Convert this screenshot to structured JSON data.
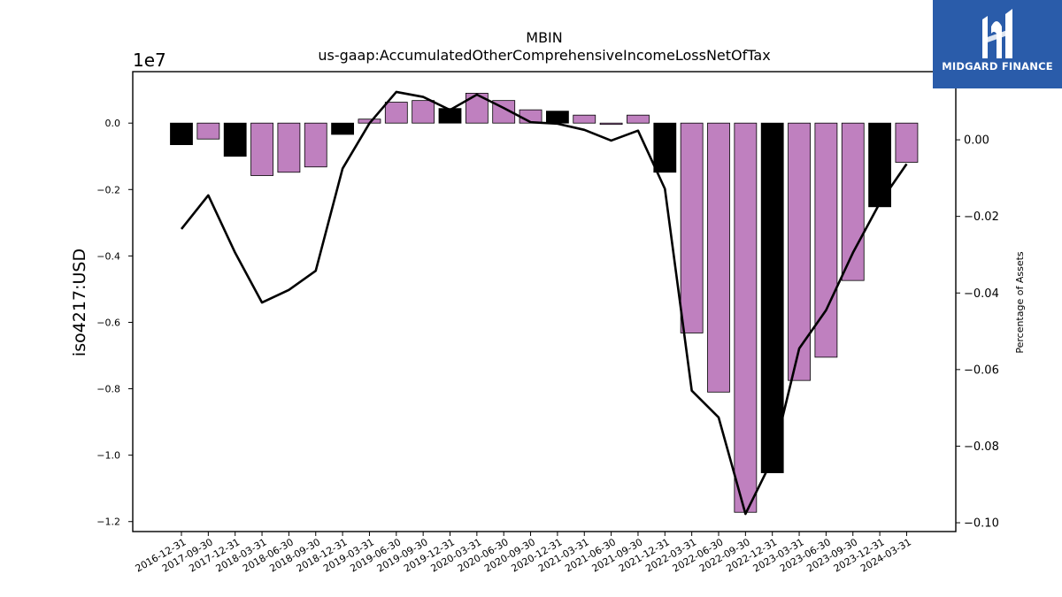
{
  "chart_data": {
    "type": "bar+line",
    "title": "MBIN",
    "subtitle": "us-gaap:AccumulatedOtherComprehensiveIncomeLossNetOfTax",
    "ylabel": "iso4217:USD",
    "y2label": "Percentage of Assets",
    "y_offset_label": "1e7",
    "ylim": [
      -1.23,
      0.155
    ],
    "y2lim": [
      -0.1023,
      0.0178
    ],
    "yticks": [
      "0.0",
      "−0.2",
      "−0.4",
      "−0.6",
      "−0.8",
      "−1.0",
      "−1.2"
    ],
    "y2ticks": [
      "0.00",
      "−0.02",
      "−0.04",
      "−0.06",
      "−0.08",
      "−0.10"
    ],
    "categories": [
      "2016-12-31",
      "2017-09-30",
      "2017-12-31",
      "2018-03-31",
      "2018-06-30",
      "2018-09-30",
      "2018-12-31",
      "2019-03-31",
      "2019-06-30",
      "2019-09-30",
      "2019-12-31",
      "2020-03-31",
      "2020-06-30",
      "2020-09-30",
      "2020-12-31",
      "2021-03-31",
      "2021-06-30",
      "2021-09-30",
      "2021-12-31",
      "2022-03-31",
      "2022-06-30",
      "2022-09-30",
      "2022-12-31",
      "2023-03-31",
      "2023-06-30",
      "2023-09-30",
      "2023-12-31",
      "2024-03-31"
    ],
    "series": [
      {
        "type": "bar",
        "values": [
          -0.065,
          -0.048,
          -0.1,
          -0.158,
          -0.148,
          -0.132,
          -0.034,
          0.012,
          0.063,
          0.068,
          0.044,
          0.09,
          0.068,
          0.04,
          0.036,
          0.024,
          -0.004,
          0.024,
          -0.148,
          -0.632,
          -0.81,
          -1.172,
          -1.053,
          -0.775,
          -0.705,
          -0.474,
          -0.252,
          -0.118
        ],
        "colors": [
          "#000000",
          "#bf80bf",
          "#000000",
          "#bf80bf",
          "#bf80bf",
          "#bf80bf",
          "#000000",
          "#bf80bf",
          "#bf80bf",
          "#bf80bf",
          "#000000",
          "#bf80bf",
          "#bf80bf",
          "#bf80bf",
          "#000000",
          "#bf80bf",
          "#bf80bf",
          "#bf80bf",
          "#000000",
          "#bf80bf",
          "#bf80bf",
          "#bf80bf",
          "#000000",
          "#bf80bf",
          "#bf80bf",
          "#bf80bf",
          "#000000",
          "#bf80bf"
        ]
      },
      {
        "type": "line",
        "axis": "right",
        "color": "#000000",
        "values": [
          -0.0233,
          -0.0145,
          -0.0295,
          -0.0425,
          -0.0392,
          -0.0342,
          -0.0075,
          0.0043,
          0.0125,
          0.0112,
          0.0078,
          0.0118,
          0.0083,
          0.0046,
          0.0042,
          0.0026,
          -0.0002,
          0.0024,
          -0.0128,
          -0.0655,
          -0.0725,
          -0.0977,
          -0.0835,
          -0.0545,
          -0.0445,
          -0.0295,
          -0.0165,
          -0.0063
        ]
      }
    ],
    "grid": false,
    "legend": "none"
  },
  "logo": {
    "text": "MIDGARD FINANCE",
    "icon": "midgard-finance-logo-icon",
    "bg_color": "#2a5caa"
  }
}
